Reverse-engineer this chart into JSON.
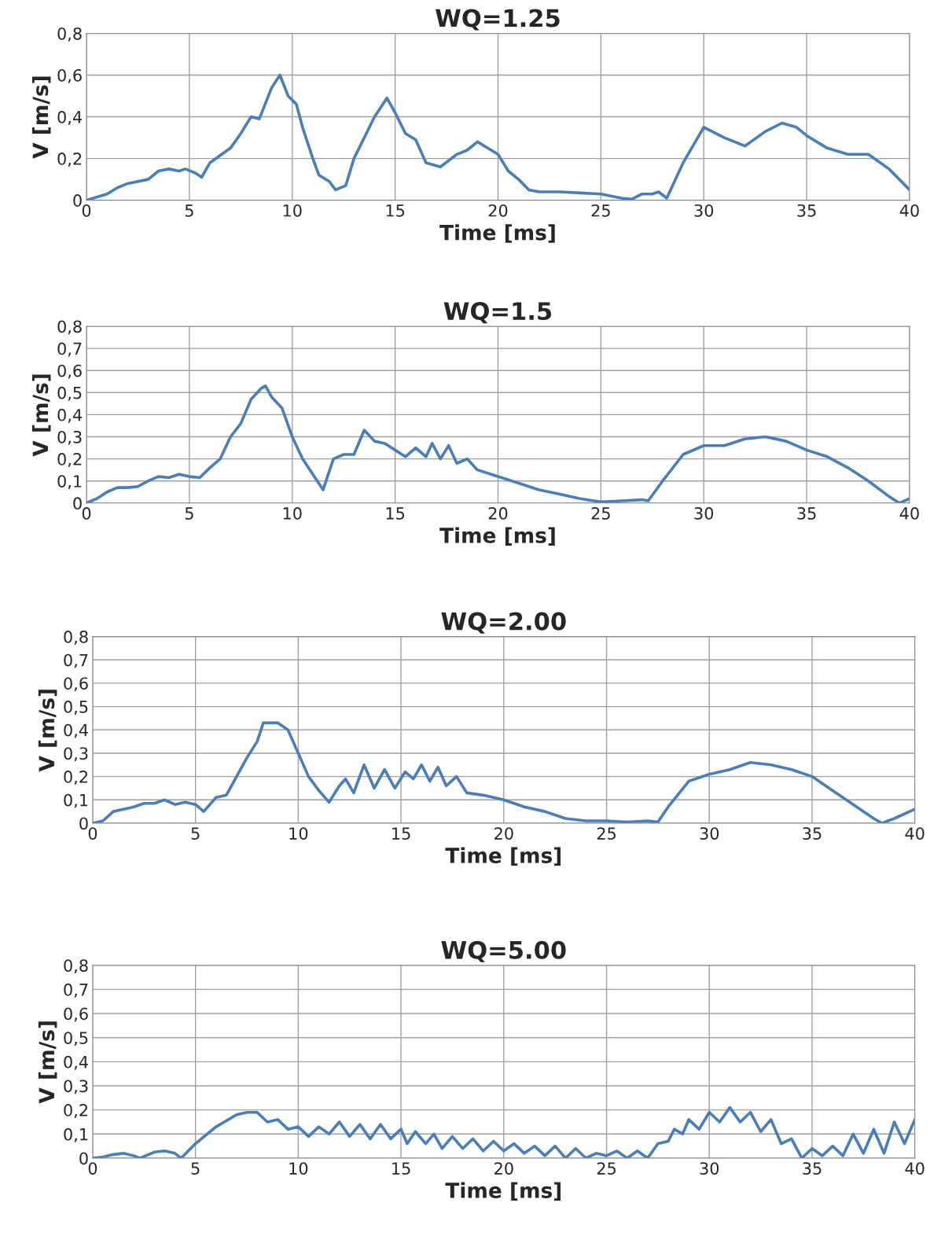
{
  "chart_data": [
    {
      "type": "line",
      "title": "WQ=1.25",
      "xlabel": "Time [ms]",
      "ylabel": "V [m/s]",
      "xlim": [
        0,
        40
      ],
      "xticks": [
        0,
        5,
        10,
        15,
        20,
        25,
        30,
        35,
        40
      ],
      "ylim": [
        0,
        0.8
      ],
      "yticks": [
        0,
        {
          "value": 0.2,
          "label": "0,2"
        },
        {
          "value": 0.4,
          "label": "0,4"
        },
        {
          "value": 0.6,
          "label": "0,6"
        },
        {
          "value": 0.8,
          "label": "0,8"
        }
      ],
      "grid": true,
      "series": [
        {
          "color": "#4a7ebb",
          "x": [
            0,
            1,
            1.5,
            2,
            3,
            3.5,
            4,
            4.5,
            4.8,
            5.3,
            5.6,
            6,
            7,
            7.5,
            8,
            8.4,
            9,
            9.4,
            9.8,
            10.2,
            10.5,
            11,
            11.3,
            11.8,
            12.1,
            12.6,
            13,
            13.5,
            14,
            14.6,
            15,
            15.5,
            16,
            16.5,
            17.2,
            18,
            18.5,
            19,
            20,
            20.5,
            21,
            21.5,
            22,
            23,
            24,
            25,
            26,
            26.5,
            27,
            27.5,
            27.8,
            28.2,
            29,
            30,
            31,
            32,
            33,
            33.8,
            34.5,
            35,
            36,
            37,
            38,
            39,
            40
          ],
          "values": [
            0,
            0.03,
            0.06,
            0.08,
            0.1,
            0.14,
            0.15,
            0.14,
            0.15,
            0.13,
            0.11,
            0.18,
            0.25,
            0.32,
            0.4,
            0.39,
            0.54,
            0.6,
            0.5,
            0.46,
            0.35,
            0.2,
            0.12,
            0.09,
            0.05,
            0.07,
            0.2,
            0.3,
            0.4,
            0.49,
            0.42,
            0.32,
            0.29,
            0.18,
            0.16,
            0.22,
            0.24,
            0.28,
            0.22,
            0.14,
            0.1,
            0.05,
            0.04,
            0.04,
            0.035,
            0.03,
            0.01,
            0.005,
            0.03,
            0.03,
            0.04,
            0.01,
            0.18,
            0.35,
            0.3,
            0.26,
            0.33,
            0.37,
            0.35,
            0.31,
            0.25,
            0.22,
            0.22,
            0.15,
            0.05
          ]
        }
      ]
    },
    {
      "type": "line",
      "title": "WQ=1.5",
      "xlabel": "Time [ms]",
      "ylabel": "V [m/s]",
      "xlim": [
        0,
        40
      ],
      "xticks": [
        0,
        5,
        10,
        15,
        20,
        25,
        30,
        35,
        40
      ],
      "ylim": [
        0,
        0.8
      ],
      "yticks": [
        0,
        {
          "value": 0.1,
          "label": "0,1"
        },
        {
          "value": 0.2,
          "label": "0,2"
        },
        {
          "value": 0.3,
          "label": "0,3"
        },
        {
          "value": 0.4,
          "label": "0,4"
        },
        {
          "value": 0.5,
          "label": "0,5"
        },
        {
          "value": 0.6,
          "label": "0,6"
        },
        {
          "value": 0.7,
          "label": "0,7"
        },
        {
          "value": 0.8,
          "label": "0,8"
        }
      ],
      "grid": true,
      "series": [
        {
          "color": "#4a7ebb",
          "x": [
            0,
            0.5,
            1,
            1.5,
            2,
            2.5,
            3,
            3.5,
            4,
            4.5,
            5,
            5.5,
            6,
            6.5,
            7,
            7.5,
            8,
            8.5,
            8.7,
            9,
            9.5,
            10,
            10.5,
            11,
            11.5,
            12,
            12.5,
            13,
            13.5,
            14,
            14.5,
            15,
            15.5,
            16,
            16.5,
            16.8,
            17.2,
            17.6,
            18,
            18.5,
            19,
            20,
            21,
            22,
            23,
            24,
            25,
            26,
            27,
            27.3,
            28,
            29,
            30,
            31,
            32,
            33,
            34,
            35,
            36,
            37,
            38,
            39,
            39.5,
            40
          ],
          "values": [
            0,
            0.02,
            0.05,
            0.07,
            0.07,
            0.075,
            0.1,
            0.12,
            0.115,
            0.13,
            0.12,
            0.115,
            0.16,
            0.2,
            0.3,
            0.36,
            0.47,
            0.52,
            0.53,
            0.48,
            0.43,
            0.3,
            0.2,
            0.13,
            0.06,
            0.2,
            0.22,
            0.22,
            0.33,
            0.28,
            0.27,
            0.24,
            0.21,
            0.25,
            0.21,
            0.27,
            0.2,
            0.26,
            0.18,
            0.2,
            0.15,
            0.12,
            0.09,
            0.06,
            0.04,
            0.02,
            0.005,
            0.01,
            0.015,
            0.01,
            0.1,
            0.22,
            0.26,
            0.26,
            0.29,
            0.3,
            0.28,
            0.24,
            0.21,
            0.16,
            0.1,
            0.03,
            0.0,
            0.02
          ]
        }
      ]
    },
    {
      "type": "line",
      "title": "WQ=2.00",
      "xlabel": "Time [ms]",
      "ylabel": "V [m/s]",
      "xlim": [
        0,
        40
      ],
      "xticks": [
        0,
        5,
        10,
        15,
        20,
        25,
        30,
        35,
        40
      ],
      "ylim": [
        0,
        0.8
      ],
      "yticks": [
        0,
        {
          "value": 0.1,
          "label": "0,1"
        },
        {
          "value": 0.2,
          "label": "0,2"
        },
        {
          "value": 0.3,
          "label": "0,3"
        },
        {
          "value": 0.4,
          "label": "0,4"
        },
        {
          "value": 0.5,
          "label": "0,5"
        },
        {
          "value": 0.6,
          "label": "0,6"
        },
        {
          "value": 0.7,
          "label": "0,7"
        },
        {
          "value": 0.8,
          "label": "0,8"
        }
      ],
      "grid": true,
      "series": [
        {
          "color": "#4a7ebb",
          "x": [
            0,
            0.5,
            1,
            1.5,
            2,
            2.5,
            3,
            3.5,
            4,
            4.5,
            5,
            5.4,
            6,
            6.5,
            7,
            7.5,
            8,
            8.3,
            9,
            9.5,
            10,
            10.5,
            11,
            11.5,
            12,
            12.3,
            12.7,
            13.2,
            13.7,
            14.2,
            14.7,
            15.2,
            15.6,
            16,
            16.4,
            16.8,
            17.2,
            17.7,
            18.2,
            19,
            20,
            21,
            22,
            23,
            24,
            25,
            26,
            27,
            27.5,
            28,
            29,
            30,
            31,
            32,
            33,
            34,
            35,
            36,
            37,
            38,
            38.4,
            39,
            40
          ],
          "values": [
            0,
            0.01,
            0.05,
            0.06,
            0.07,
            0.085,
            0.085,
            0.1,
            0.08,
            0.09,
            0.08,
            0.05,
            0.11,
            0.12,
            0.2,
            0.28,
            0.35,
            0.43,
            0.43,
            0.4,
            0.3,
            0.2,
            0.14,
            0.09,
            0.16,
            0.19,
            0.13,
            0.25,
            0.15,
            0.23,
            0.15,
            0.22,
            0.19,
            0.25,
            0.18,
            0.24,
            0.16,
            0.2,
            0.13,
            0.12,
            0.1,
            0.07,
            0.05,
            0.02,
            0.01,
            0.01,
            0.005,
            0.01,
            0.005,
            0.07,
            0.18,
            0.21,
            0.23,
            0.26,
            0.25,
            0.23,
            0.2,
            0.14,
            0.08,
            0.02,
            0,
            0.02,
            0.06
          ]
        }
      ]
    },
    {
      "type": "line",
      "title": "WQ=5.00",
      "xlabel": "Time [ms]",
      "ylabel": "V [m/s]",
      "xlim": [
        0,
        40
      ],
      "xticks": [
        0,
        5,
        10,
        15,
        20,
        25,
        30,
        35,
        40
      ],
      "ylim": [
        0,
        0.8
      ],
      "yticks": [
        0,
        {
          "value": 0.1,
          "label": "0,1"
        },
        {
          "value": 0.2,
          "label": "0,2"
        },
        {
          "value": 0.3,
          "label": "0,3"
        },
        {
          "value": 0.4,
          "label": "0,4"
        },
        {
          "value": 0.5,
          "label": "0,5"
        },
        {
          "value": 0.6,
          "label": "0,6"
        },
        {
          "value": 0.7,
          "label": "0,7"
        },
        {
          "value": 0.8,
          "label": "0,8"
        }
      ],
      "grid": true,
      "series": [
        {
          "color": "#4a7ebb",
          "x": [
            0,
            0.5,
            1,
            1.5,
            2,
            2.3,
            3,
            3.5,
            4,
            4.3,
            5,
            6,
            7,
            7.5,
            8,
            8.5,
            9,
            9.5,
            10,
            10.5,
            11,
            11.5,
            12,
            12.5,
            13,
            13.5,
            14,
            14.5,
            15,
            15.3,
            15.7,
            16.2,
            16.6,
            17,
            17.5,
            18,
            18.5,
            19,
            19.5,
            20,
            20.5,
            21,
            21.5,
            22,
            22.5,
            23,
            23.5,
            24,
            24.5,
            25,
            25.5,
            26,
            26.5,
            27,
            27.5,
            28,
            28.3,
            28.7,
            29,
            29.5,
            30,
            30.5,
            31,
            31.5,
            32,
            32.5,
            33,
            33.5,
            34,
            34.5,
            35,
            35.5,
            36,
            36.5,
            37,
            37.5,
            38,
            38.5,
            39,
            39.5,
            40
          ],
          "values": [
            0,
            0.005,
            0.015,
            0.02,
            0.01,
            0,
            0.025,
            0.03,
            0.02,
            0,
            0.06,
            0.13,
            0.18,
            0.19,
            0.19,
            0.15,
            0.16,
            0.12,
            0.13,
            0.09,
            0.13,
            0.1,
            0.15,
            0.09,
            0.14,
            0.08,
            0.14,
            0.08,
            0.12,
            0.06,
            0.11,
            0.06,
            0.1,
            0.04,
            0.09,
            0.04,
            0.08,
            0.03,
            0.07,
            0.03,
            0.06,
            0.02,
            0.05,
            0.01,
            0.05,
            0,
            0.04,
            0,
            0.02,
            0.01,
            0.03,
            0,
            0.03,
            0,
            0.06,
            0.07,
            0.12,
            0.1,
            0.16,
            0.12,
            0.19,
            0.15,
            0.21,
            0.15,
            0.19,
            0.11,
            0.16,
            0.06,
            0.08,
            0,
            0.04,
            0.01,
            0.05,
            0.01,
            0.1,
            0.02,
            0.12,
            0.02,
            0.15,
            0.06,
            0.16
          ]
        }
      ]
    }
  ]
}
